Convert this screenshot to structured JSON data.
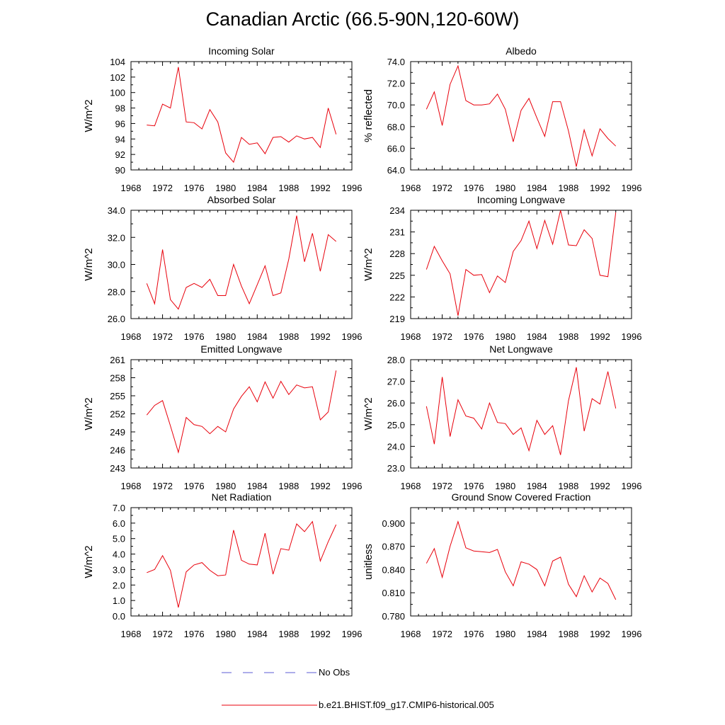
{
  "title": "Canadian Arctic (66.5-90N,120-60W)",
  "legend": [
    {
      "label": "No Obs",
      "color": "#5b5bd6",
      "style": "dashed"
    },
    {
      "label": "b.e21.BHIST.f09_g17.CMIP6-historical.005",
      "color": "#e8000b",
      "style": "solid"
    }
  ],
  "chart_data": [
    {
      "type": "line",
      "title": "Incoming Solar",
      "ylabel": "W/m^2",
      "xlim": [
        1968,
        1996
      ],
      "ylim": [
        90,
        104
      ],
      "xticks": [
        "1968",
        "1972",
        "1976",
        "1980",
        "1984",
        "1988",
        "1992",
        "1996"
      ],
      "yticks": [
        "90",
        "92",
        "94",
        "96",
        "98",
        "100",
        "102",
        "104"
      ],
      "x": [
        1970,
        1971,
        1972,
        1973,
        1974,
        1975,
        1976,
        1977,
        1978,
        1979,
        1980,
        1981,
        1982,
        1983,
        1984,
        1985,
        1986,
        1987,
        1988,
        1989,
        1990,
        1991,
        1992,
        1993,
        1994
      ],
      "series": [
        {
          "name": "b.e21.BHIST.f09_g17.CMIP6-historical.005",
          "values": [
            95.8,
            95.7,
            98.5,
            98.0,
            103.3,
            96.2,
            96.1,
            95.3,
            97.8,
            96.2,
            92.2,
            91.0,
            94.2,
            93.3,
            93.5,
            92.1,
            94.2,
            94.3,
            93.6,
            94.4,
            94.0,
            94.2,
            92.9,
            98.0,
            94.6
          ]
        }
      ]
    },
    {
      "type": "line",
      "title": "Albedo",
      "ylabel": "% reflected",
      "xlim": [
        1968,
        1996
      ],
      "ylim": [
        64,
        74
      ],
      "xticks": [
        "1968",
        "1972",
        "1976",
        "1980",
        "1984",
        "1988",
        "1992",
        "1996"
      ],
      "yticks": [
        "64.0",
        "66.0",
        "68.0",
        "70.0",
        "72.0",
        "74.0"
      ],
      "x": [
        1970,
        1971,
        1972,
        1973,
        1974,
        1975,
        1976,
        1977,
        1978,
        1979,
        1980,
        1981,
        1982,
        1983,
        1984,
        1985,
        1986,
        1987,
        1988,
        1989,
        1990,
        1991,
        1992,
        1993,
        1994
      ],
      "series": [
        {
          "name": "b.e21.BHIST.f09_g17.CMIP6-historical.005",
          "values": [
            69.6,
            71.2,
            68.1,
            71.9,
            73.6,
            70.4,
            70.0,
            70.0,
            70.1,
            71.0,
            69.6,
            66.6,
            69.5,
            70.6,
            68.8,
            67.1,
            70.3,
            70.3,
            67.6,
            64.3,
            67.7,
            65.3,
            67.8,
            66.9,
            66.2
          ]
        }
      ]
    },
    {
      "type": "line",
      "title": "Absorbed Solar",
      "ylabel": "W/m^2",
      "xlim": [
        1968,
        1996
      ],
      "ylim": [
        26,
        34
      ],
      "xticks": [
        "1968",
        "1972",
        "1976",
        "1980",
        "1984",
        "1988",
        "1992",
        "1996"
      ],
      "yticks": [
        "26.0",
        "28.0",
        "30.0",
        "32.0",
        "34.0"
      ],
      "x": [
        1970,
        1971,
        1972,
        1973,
        1974,
        1975,
        1976,
        1977,
        1978,
        1979,
        1980,
        1981,
        1982,
        1983,
        1984,
        1985,
        1986,
        1987,
        1988,
        1989,
        1990,
        1991,
        1992,
        1993,
        1994
      ],
      "series": [
        {
          "name": "b.e21.BHIST.f09_g17.CMIP6-historical.005",
          "values": [
            28.6,
            27.1,
            31.1,
            27.4,
            26.7,
            28.3,
            28.6,
            28.3,
            28.9,
            27.7,
            27.7,
            30.0,
            28.4,
            27.1,
            28.5,
            29.9,
            27.7,
            27.9,
            30.4,
            33.6,
            30.2,
            32.3,
            29.5,
            32.2,
            31.7
          ]
        }
      ]
    },
    {
      "type": "line",
      "title": "Incoming Longwave",
      "ylabel": "W/m^2",
      "xlim": [
        1968,
        1996
      ],
      "ylim": [
        219,
        234
      ],
      "xticks": [
        "1968",
        "1972",
        "1976",
        "1980",
        "1984",
        "1988",
        "1992",
        "1996"
      ],
      "yticks": [
        "219",
        "222",
        "225",
        "228",
        "231",
        "234"
      ],
      "x": [
        1970,
        1971,
        1972,
        1973,
        1974,
        1975,
        1976,
        1977,
        1978,
        1979,
        1980,
        1981,
        1982,
        1983,
        1984,
        1985,
        1986,
        1987,
        1988,
        1989,
        1990,
        1991,
        1992,
        1993,
        1994
      ],
      "series": [
        {
          "name": "b.e21.BHIST.f09_g17.CMIP6-historical.005",
          "values": [
            225.8,
            229.0,
            227.0,
            225.2,
            219.4,
            225.8,
            225.0,
            225.1,
            222.6,
            224.9,
            224.0,
            228.3,
            229.8,
            232.5,
            228.7,
            232.6,
            229.3,
            234.0,
            229.2,
            229.1,
            231.3,
            230.1,
            225.0,
            224.8,
            233.7
          ]
        }
      ]
    },
    {
      "type": "line",
      "title": "Emitted Longwave",
      "ylabel": "W/m^2",
      "xlim": [
        1968,
        1996
      ],
      "ylim": [
        243,
        261
      ],
      "xticks": [
        "1968",
        "1972",
        "1976",
        "1980",
        "1984",
        "1988",
        "1992",
        "1996"
      ],
      "yticks": [
        "243",
        "246",
        "249",
        "252",
        "255",
        "258",
        "261"
      ],
      "x": [
        1970,
        1971,
        1972,
        1973,
        1974,
        1975,
        1976,
        1977,
        1978,
        1979,
        1980,
        1981,
        1982,
        1983,
        1984,
        1985,
        1986,
        1987,
        1988,
        1989,
        1990,
        1991,
        1992,
        1993,
        1994
      ],
      "series": [
        {
          "name": "b.e21.BHIST.f09_g17.CMIP6-historical.005",
          "values": [
            251.8,
            253.4,
            254.2,
            250.0,
            245.6,
            251.4,
            250.2,
            249.9,
            248.7,
            249.9,
            249.0,
            252.8,
            254.9,
            256.5,
            254.0,
            257.3,
            254.6,
            257.4,
            255.2,
            256.8,
            256.3,
            256.5,
            251.0,
            252.3,
            259.2
          ]
        }
      ]
    },
    {
      "type": "line",
      "title": "Net Longwave",
      "ylabel": "W/m^2",
      "xlim": [
        1968,
        1996
      ],
      "ylim": [
        23,
        28
      ],
      "xticks": [
        "1968",
        "1972",
        "1976",
        "1980",
        "1984",
        "1988",
        "1992",
        "1996"
      ],
      "yticks": [
        "23.0",
        "24.0",
        "25.0",
        "26.0",
        "27.0",
        "28.0"
      ],
      "x": [
        1970,
        1971,
        1972,
        1973,
        1974,
        1975,
        1976,
        1977,
        1978,
        1979,
        1980,
        1981,
        1982,
        1983,
        1984,
        1985,
        1986,
        1987,
        1988,
        1989,
        1990,
        1991,
        1992,
        1993,
        1994
      ],
      "series": [
        {
          "name": "b.e21.BHIST.f09_g17.CMIP6-historical.005",
          "values": [
            25.85,
            24.1,
            27.2,
            24.45,
            26.15,
            25.4,
            25.3,
            24.8,
            26.0,
            25.1,
            25.05,
            24.55,
            24.85,
            23.8,
            25.2,
            24.55,
            24.95,
            23.6,
            26.1,
            27.65,
            24.7,
            26.2,
            25.95,
            27.45,
            25.75
          ]
        }
      ]
    },
    {
      "type": "line",
      "title": "Net Radiation",
      "ylabel": "W/m^2",
      "xlim": [
        1968,
        1996
      ],
      "ylim": [
        0,
        7
      ],
      "xticks": [
        "1968",
        "1972",
        "1976",
        "1980",
        "1984",
        "1988",
        "1992",
        "1996"
      ],
      "yticks": [
        "0.0",
        "1.0",
        "2.0",
        "3.0",
        "4.0",
        "5.0",
        "6.0",
        "7.0"
      ],
      "x": [
        1970,
        1971,
        1972,
        1973,
        1974,
        1975,
        1976,
        1977,
        1978,
        1979,
        1980,
        1981,
        1982,
        1983,
        1984,
        1985,
        1986,
        1987,
        1988,
        1989,
        1990,
        1991,
        1992,
        1993,
        1994
      ],
      "series": [
        {
          "name": "b.e21.BHIST.f09_g17.CMIP6-historical.005",
          "values": [
            2.8,
            3.0,
            3.9,
            2.95,
            0.55,
            2.85,
            3.3,
            3.45,
            2.95,
            2.6,
            2.65,
            5.55,
            3.6,
            3.35,
            3.3,
            5.35,
            2.7,
            4.35,
            4.25,
            5.95,
            5.45,
            6.1,
            3.55,
            4.8,
            5.9
          ]
        }
      ]
    },
    {
      "type": "line",
      "title": "Ground Snow Covered Fraction",
      "ylabel": "unitless",
      "xlim": [
        1968,
        1996
      ],
      "ylim": [
        0.78,
        0.92
      ],
      "xticks": [
        "1968",
        "1972",
        "1976",
        "1980",
        "1984",
        "1988",
        "1992",
        "1996"
      ],
      "yticks": [
        "0.780",
        "0.810",
        "0.840",
        "0.870",
        "0.900"
      ],
      "ytick_values": [
        0.78,
        0.81,
        0.84,
        0.87,
        0.9
      ],
      "x": [
        1970,
        1971,
        1972,
        1973,
        1974,
        1975,
        1976,
        1977,
        1978,
        1979,
        1980,
        1981,
        1982,
        1983,
        1984,
        1985,
        1986,
        1987,
        1988,
        1989,
        1990,
        1991,
        1992,
        1993,
        1994
      ],
      "series": [
        {
          "name": "b.e21.BHIST.f09_g17.CMIP6-historical.005",
          "values": [
            0.848,
            0.867,
            0.83,
            0.87,
            0.902,
            0.868,
            0.864,
            0.863,
            0.862,
            0.866,
            0.837,
            0.819,
            0.85,
            0.847,
            0.84,
            0.819,
            0.851,
            0.856,
            0.821,
            0.805,
            0.832,
            0.811,
            0.829,
            0.822,
            0.801
          ]
        }
      ]
    }
  ]
}
